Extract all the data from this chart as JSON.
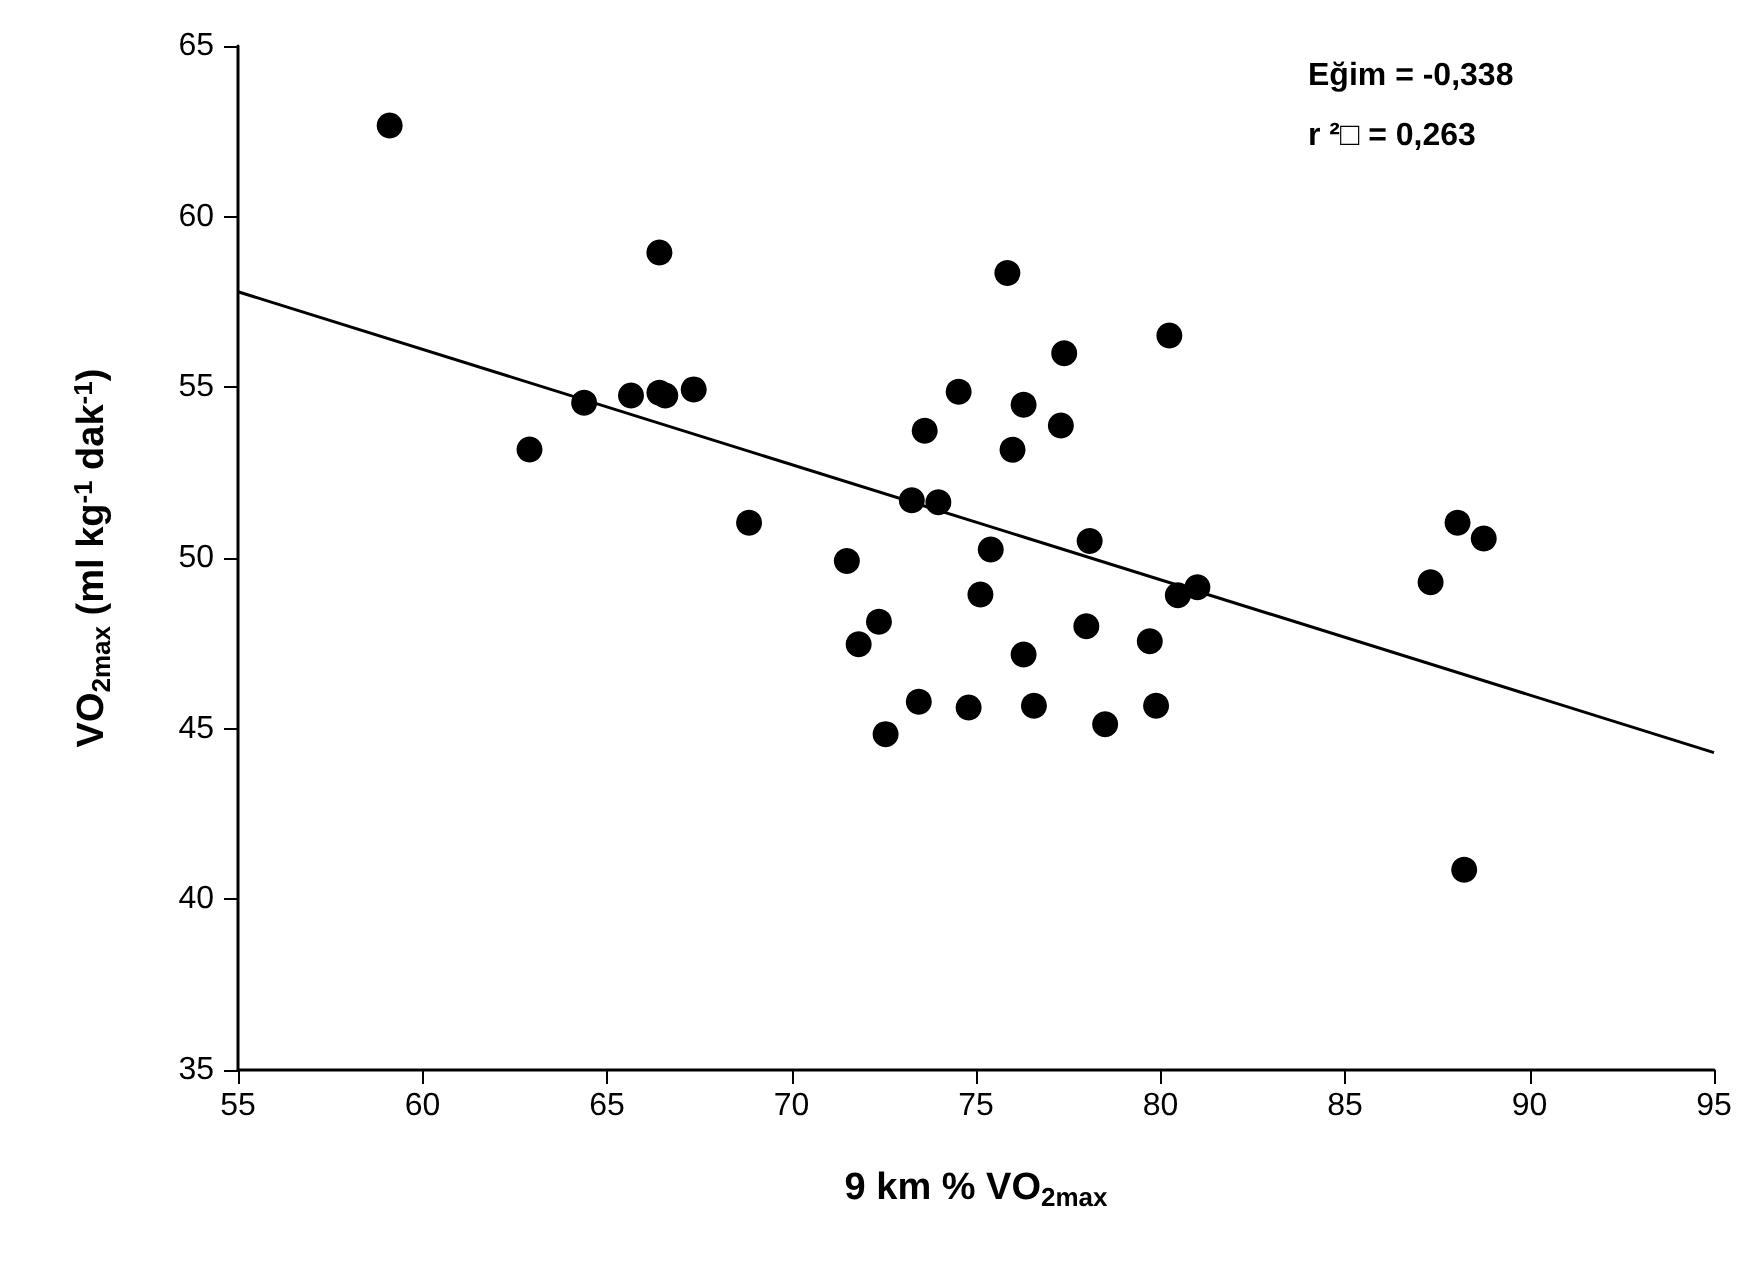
{
  "chart_data": {
    "type": "scatter",
    "xlabel": "9 km % VO$_{2max}$",
    "ylabel": "VO$_{2max}$ (ml kg$^{-1}$ dak$^{-1}$)",
    "x": [
      59.11,
      66.42,
      62.9,
      64.38,
      65.65,
      66.42,
      66.58,
      67.35,
      68.85,
      71.5,
      71.82,
      72.37,
      72.55,
      73.26,
      73.45,
      73.61,
      73.98,
      74.53,
      74.8,
      75.12,
      75.4,
      75.85,
      75.99,
      76.29,
      76.29,
      76.57,
      77.3,
      77.39,
      77.99,
      78.08,
      78.5,
      79.71,
      79.88,
      80.24,
      80.47,
      81.0,
      87.32,
      88.05,
      88.76,
      88.23
    ],
    "series": [
      {
        "marker": "circle",
        "color": "#000000",
        "values": [
          62.67,
          58.95,
          53.18,
          54.55,
          54.76,
          54.84,
          54.76,
          54.94,
          51.03,
          49.91,
          47.47,
          48.13,
          44.84,
          51.69,
          45.79,
          53.73,
          51.63,
          54.87,
          45.62,
          48.93,
          50.25,
          58.35,
          53.17,
          54.49,
          47.17,
          45.67,
          53.88,
          56.0,
          48.0,
          50.5,
          45.13,
          47.56,
          45.67,
          56.52,
          48.91,
          49.14,
          49.29,
          51.03,
          50.57,
          40.87
        ]
      },
      {
        "type": "line",
        "marker": "none",
        "color": "#000000",
        "x": [
          55,
          95
        ],
        "values": [
          57.8,
          44.3
        ]
      }
    ],
    "xlim": [
      55,
      95
    ],
    "xticks": [
      55,
      60,
      65,
      70,
      75,
      80,
      85,
      90,
      95
    ],
    "ylim": [
      35,
      65
    ],
    "yticks": [
      35,
      40,
      45,
      50,
      55,
      60,
      65
    ],
    "line_style": "solid",
    "grid": false,
    "annotations": [
      "Eğim = -0,338",
      "r ²□ = 0,263"
    ]
  }
}
